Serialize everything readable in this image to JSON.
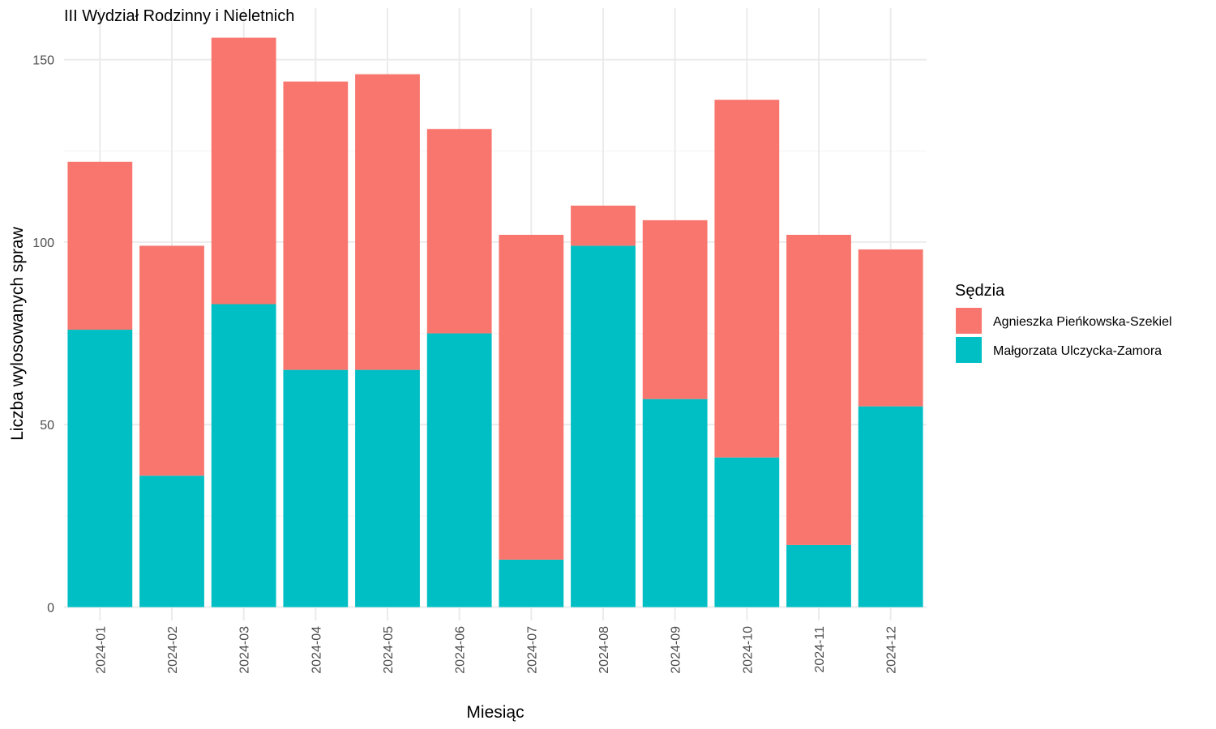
{
  "chart_data": {
    "type": "bar",
    "stacked": true,
    "title": "III Wydział Rodzinny i Nieletnich",
    "xlabel": "Miesiąc",
    "ylabel": "Liczba wylosowanych spraw",
    "ylim": [
      0,
      160
    ],
    "yticks": [
      0,
      50,
      100,
      150
    ],
    "grid": true,
    "legend_position": "right",
    "legend_title": "Sędzia",
    "categories": [
      "2024-01",
      "2024-02",
      "2024-03",
      "2024-04",
      "2024-05",
      "2024-06",
      "2024-07",
      "2024-08",
      "2024-09",
      "2024-10",
      "2024-11",
      "2024-12"
    ],
    "series": [
      {
        "name": "Małgorzata Ulczycka-Zamora",
        "color": "#00BFC4",
        "values": [
          76,
          36,
          83,
          65,
          65,
          75,
          13,
          99,
          57,
          41,
          17,
          55
        ]
      },
      {
        "name": "Agnieszka Pieńkowska-Szekiel",
        "color": "#F8766D",
        "values": [
          46,
          63,
          73,
          79,
          81,
          56,
          89,
          11,
          49,
          98,
          85,
          43
        ]
      }
    ],
    "legend_order": [
      1,
      0
    ]
  }
}
